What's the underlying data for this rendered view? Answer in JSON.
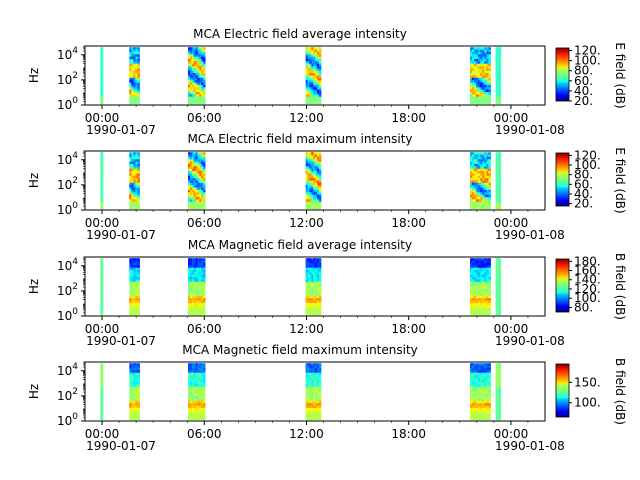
{
  "chart_data": [
    {
      "type": "heatmap",
      "title": "MCA  Electric field average intensity",
      "ylabel": "Hz",
      "yscale": "log",
      "ylim": [
        1,
        50000
      ],
      "y_ticks": [
        {
          "base": "10",
          "exp": "0"
        },
        {
          "base": "10",
          "exp": "2"
        },
        {
          "base": "10",
          "exp": "4"
        }
      ],
      "x_ticks": [
        "00:00",
        "06:00",
        "12:00",
        "18:00",
        "00:00"
      ],
      "x_dates": [
        "1990-01-07",
        "",
        "",
        "",
        "1990-01-08"
      ],
      "colorbar_label": "E field (dB)",
      "colorbar_range": [
        20,
        125
      ],
      "colorbar_ticks": [
        "120.",
        "100.",
        "80.",
        "60.",
        "40.",
        "20."
      ],
      "colorbar_values": [
        120,
        100,
        80,
        60,
        40,
        20
      ],
      "field": "electric",
      "mode": "average",
      "data_intervals_hours": [
        [
          -0.1,
          0.05
        ],
        [
          1.6,
          2.2
        ],
        [
          5.05,
          6.05
        ],
        [
          11.95,
          12.85
        ],
        [
          21.6,
          22.8
        ],
        [
          23.1,
          23.4
        ]
      ]
    },
    {
      "type": "heatmap",
      "title": "MCA  Electric field maximum intensity",
      "ylabel": "Hz",
      "yscale": "log",
      "ylim": [
        1,
        50000
      ],
      "y_ticks": [
        {
          "base": "10",
          "exp": "0"
        },
        {
          "base": "10",
          "exp": "2"
        },
        {
          "base": "10",
          "exp": "4"
        }
      ],
      "x_ticks": [
        "00:00",
        "06:00",
        "12:00",
        "18:00",
        "00:00"
      ],
      "x_dates": [
        "1990-01-07",
        "",
        "",
        "",
        "1990-01-08"
      ],
      "colorbar_label": "E field (dB)",
      "colorbar_range": [
        15,
        125
      ],
      "colorbar_ticks": [
        "120.",
        "100.",
        "80.",
        "60.",
        "40.",
        "20."
      ],
      "colorbar_values": [
        120,
        100,
        80,
        60,
        40,
        20
      ],
      "field": "electric",
      "mode": "maximum",
      "data_intervals_hours": [
        [
          -0.1,
          0.05
        ],
        [
          1.6,
          2.2
        ],
        [
          5.05,
          6.05
        ],
        [
          11.95,
          12.85
        ],
        [
          21.6,
          22.8
        ],
        [
          23.1,
          23.4
        ]
      ]
    },
    {
      "type": "heatmap",
      "title": "MCA  Magnetic field average intensity",
      "ylabel": "Hz",
      "yscale": "log",
      "ylim": [
        1,
        50000
      ],
      "y_ticks": [
        {
          "base": "10",
          "exp": "0"
        },
        {
          "base": "10",
          "exp": "2"
        },
        {
          "base": "10",
          "exp": "4"
        }
      ],
      "x_ticks": [
        "00:00",
        "06:00",
        "12:00",
        "18:00",
        "00:00"
      ],
      "x_dates": [
        "1990-01-07",
        "",
        "",
        "",
        "1990-01-08"
      ],
      "colorbar_label": "B field (dB)",
      "colorbar_range": [
        70,
        185
      ],
      "colorbar_ticks": [
        "180.",
        "160.",
        "140.",
        "120.",
        "100.",
        "80."
      ],
      "colorbar_values": [
        180,
        160,
        140,
        120,
        100,
        80
      ],
      "field": "magnetic",
      "mode": "average",
      "data_intervals_hours": [
        [
          -0.1,
          0.05
        ],
        [
          1.6,
          2.2
        ],
        [
          5.05,
          6.05
        ],
        [
          11.95,
          12.85
        ],
        [
          21.6,
          22.8
        ],
        [
          23.1,
          23.4
        ]
      ]
    },
    {
      "type": "heatmap",
      "title": "MCA  Magnetic field maximum intensity",
      "ylabel": "Hz",
      "yscale": "log",
      "ylim": [
        1,
        50000
      ],
      "y_ticks": [
        {
          "base": "10",
          "exp": "0"
        },
        {
          "base": "10",
          "exp": "2"
        },
        {
          "base": "10",
          "exp": "4"
        }
      ],
      "x_ticks": [
        "00:00",
        "06:00",
        "12:00",
        "18:00",
        "00:00"
      ],
      "x_dates": [
        "1990-01-07",
        "",
        "",
        "",
        "1990-01-08"
      ],
      "colorbar_label": "B field (dB)",
      "colorbar_range": [
        65,
        195
      ],
      "colorbar_ticks": [
        "150.",
        "100."
      ],
      "colorbar_values": [
        150,
        100
      ],
      "field": "magnetic",
      "mode": "maximum",
      "data_intervals_hours": [
        [
          -0.1,
          0.05
        ],
        [
          1.6,
          2.2
        ],
        [
          5.05,
          6.05
        ],
        [
          11.95,
          12.85
        ],
        [
          21.6,
          22.8
        ],
        [
          23.1,
          23.4
        ]
      ]
    }
  ]
}
